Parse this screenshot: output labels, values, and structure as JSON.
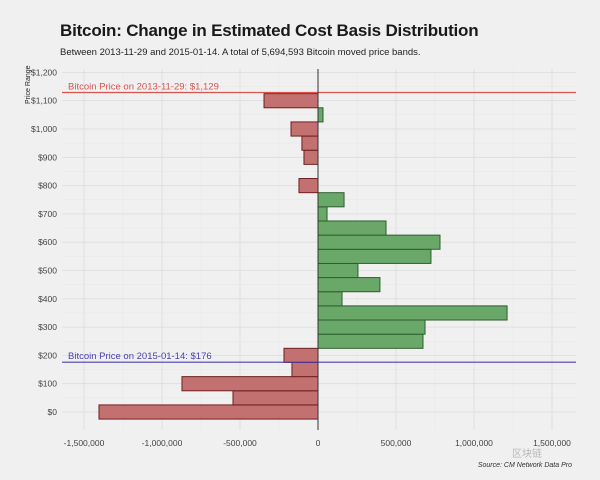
{
  "chart_data": {
    "type": "bar",
    "orientation": "horizontal",
    "title": "Bitcoin: Change in Estimated Cost Basis Distribution",
    "subtitle": "Between 2013-11-29 and 2015-01-14. A total of 5,694,593 Bitcoin moved price bands.",
    "xlabel": "",
    "ylabel": "Price Range",
    "xlim": [
      -1650000,
      1650000
    ],
    "ylim": [
      -35,
      1210
    ],
    "grid": true,
    "x_ticks": [
      -1500000,
      -1000000,
      -500000,
      0,
      500000,
      1000000,
      1500000
    ],
    "x_tick_labels": [
      "-1,500,000",
      "-1,000,000",
      "-500,000",
      "0",
      "500,000",
      "1,000,000",
      "1,500,000"
    ],
    "y_ticks": [
      0,
      100,
      200,
      300,
      400,
      500,
      600,
      700,
      800,
      900,
      1000,
      1100,
      1200
    ],
    "y_tick_labels": [
      "$0",
      "$100",
      "$200",
      "$300",
      "$400",
      "$500",
      "$600",
      "$700",
      "$800",
      "$900",
      "$1,000",
      "$1,100",
      "$1,200"
    ],
    "band_width": 50,
    "bars": [
      {
        "price": 0,
        "value": -1404000
      },
      {
        "price": 50,
        "value": -545000
      },
      {
        "price": 100,
        "value": -872000
      },
      {
        "price": 150,
        "value": -167000
      },
      {
        "price": 200,
        "value": -218000
      },
      {
        "price": 250,
        "value": 673000
      },
      {
        "price": 300,
        "value": 686000
      },
      {
        "price": 350,
        "value": 1212000
      },
      {
        "price": 400,
        "value": 154000
      },
      {
        "price": 450,
        "value": 397000
      },
      {
        "price": 500,
        "value": 256000
      },
      {
        "price": 550,
        "value": 724000
      },
      {
        "price": 600,
        "value": 782000
      },
      {
        "price": 650,
        "value": 436000
      },
      {
        "price": 700,
        "value": 58000
      },
      {
        "price": 750,
        "value": 167000
      },
      {
        "price": 800,
        "value": -122000
      },
      {
        "price": 850,
        "value": 0
      },
      {
        "price": 900,
        "value": -90000
      },
      {
        "price": 950,
        "value": -103000
      },
      {
        "price": 1000,
        "value": -173000
      },
      {
        "price": 1050,
        "value": 32000
      },
      {
        "price": 1100,
        "value": -346000
      }
    ],
    "colors": {
      "positive_fill": "#6aa86a",
      "positive_stroke": "#2e5e2e",
      "negative_fill": "#c27070",
      "negative_stroke": "#6e1f1f"
    },
    "reference_lines": [
      {
        "label": "Bitcoin Price on 2013-11-29: $1,129",
        "price": 1129,
        "color": "#d9534f"
      },
      {
        "label": "Bitcoin Price on 2015-01-14: $176",
        "price": 176,
        "color": "#4a3fb3"
      }
    ],
    "source": "Source: CM Network Data Pro"
  },
  "watermark": "区块链"
}
